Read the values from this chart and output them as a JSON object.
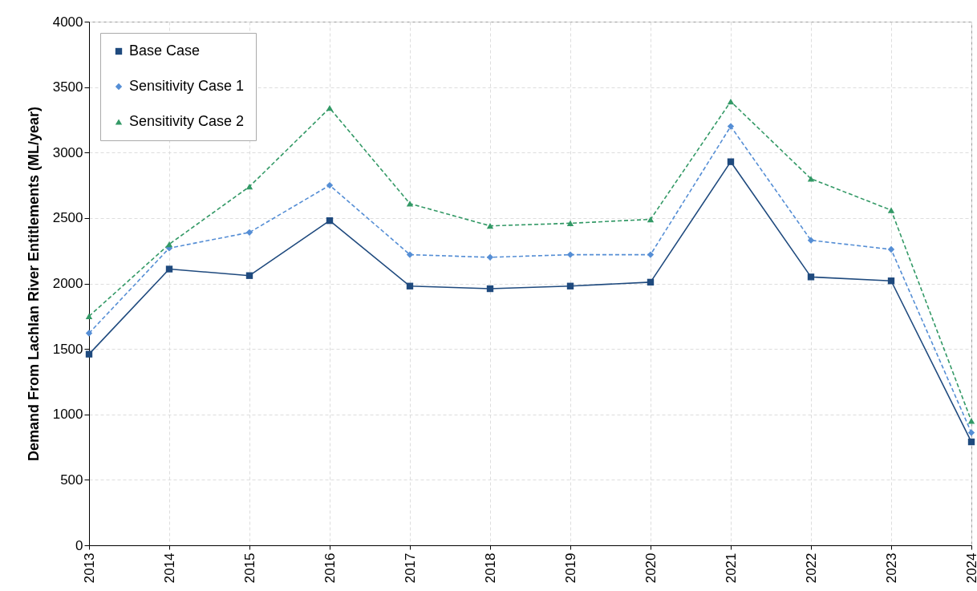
{
  "chart_data": {
    "type": "line",
    "ylabel": "Demand From Lachlan River Entitlements (ML/year)",
    "categories": [
      "2013",
      "2014",
      "2015",
      "2016",
      "2017",
      "2018",
      "2019",
      "2020",
      "2021",
      "2022",
      "2023",
      "2024"
    ],
    "series": [
      {
        "name": "Base Case",
        "color": "#1f4a7e",
        "marker": "square",
        "line_style": "solid",
        "values": [
          1460,
          2110,
          2060,
          2480,
          1980,
          1960,
          1980,
          2010,
          2930,
          2050,
          2020,
          790
        ]
      },
      {
        "name": "Sensitivity Case 1",
        "color": "#558ed5",
        "marker": "diamond",
        "line_style": "dashed",
        "values": [
          1620,
          2270,
          2390,
          2750,
          2220,
          2200,
          2220,
          2220,
          3200,
          2330,
          2260,
          860
        ]
      },
      {
        "name": "Sensitivity Case 2",
        "color": "#339966",
        "marker": "triangle",
        "line_style": "dashed",
        "values": [
          1750,
          2300,
          2740,
          3340,
          2610,
          2440,
          2460,
          2490,
          3390,
          2800,
          2560,
          950
        ]
      }
    ],
    "ylim": [
      0,
      4000
    ],
    "yticks": [
      0,
      500,
      1000,
      1500,
      2000,
      2500,
      3000,
      3500,
      4000
    ],
    "grid": true,
    "legend": "top left"
  }
}
